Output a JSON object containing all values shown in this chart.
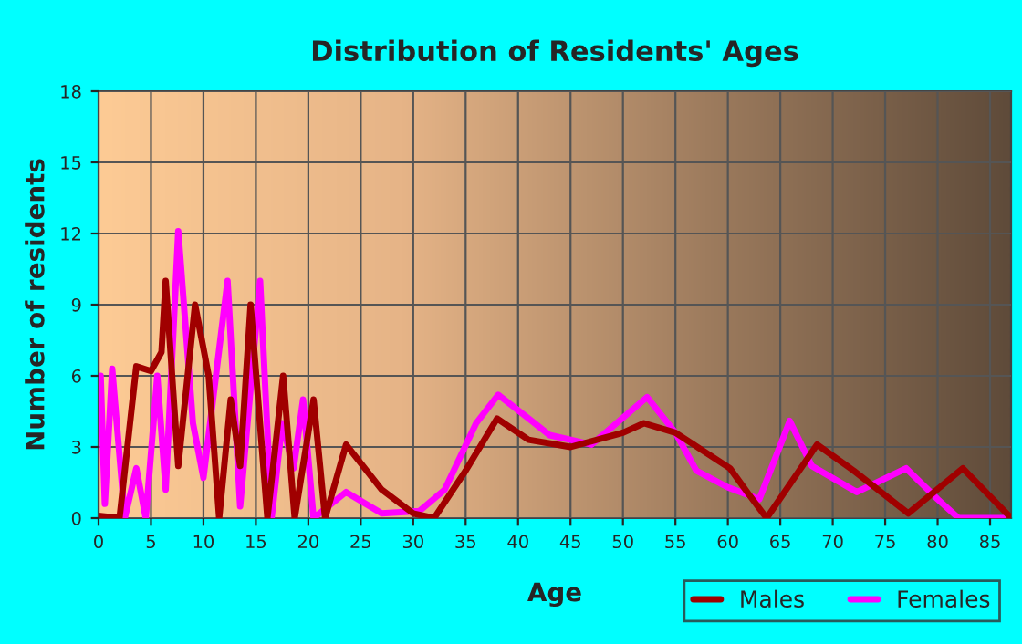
{
  "chart_data": {
    "type": "line",
    "title": "Distribution of Residents' Ages",
    "xlabel": "Age",
    "ylabel": "Number of residents",
    "xlim": [
      0,
      87
    ],
    "xticks": [
      0,
      5,
      10,
      15,
      20,
      25,
      30,
      35,
      40,
      45,
      50,
      55,
      60,
      65,
      70,
      75,
      80,
      85
    ],
    "ylim": [
      0,
      18
    ],
    "yticks": [
      0,
      3,
      6,
      9,
      12,
      15,
      18
    ],
    "grid": true,
    "legend": "bottom right",
    "marker": "none",
    "line_style": "solid",
    "series": [
      {
        "name": "Males",
        "color": "#a00000",
        "x": [
          0,
          2,
          3.6,
          5,
          6,
          6.4,
          7.6,
          9.2,
          10.5,
          11.5,
          12.6,
          13.5,
          14.5,
          16.1,
          17.6,
          18.7,
          20.5,
          21.6,
          23.6,
          27,
          30,
          32,
          35,
          38,
          41,
          45,
          50,
          52,
          55,
          60.2,
          62,
          63.7,
          68.5,
          72,
          77.2,
          82.4,
          86.8
        ],
        "values": [
          0.1,
          0,
          6.4,
          6.2,
          7,
          10,
          2.2,
          9,
          6,
          0,
          5,
          2.2,
          9,
          0,
          6,
          0,
          5,
          0,
          3.1,
          1.2,
          0.2,
          0,
          2,
          4.2,
          3.3,
          3,
          3.6,
          4,
          3.6,
          2.1,
          1,
          0,
          3.1,
          2,
          0.2,
          2.1,
          0.1
        ]
      },
      {
        "name": "Females",
        "color": "#ff00ff",
        "x": [
          0.2,
          0.6,
          1.3,
          2.5,
          3.6,
          4.5,
          5.6,
          6.4,
          7.6,
          9,
          10,
          12.3,
          13.5,
          15.4,
          16.5,
          17.5,
          18.6,
          19.5,
          20.5,
          23.6,
          27,
          30.6,
          33,
          36,
          38.1,
          41,
          43,
          45,
          47,
          52.3,
          55,
          57,
          60,
          63,
          65.9,
          68,
          72.3,
          77,
          80,
          82,
          87
        ],
        "values": [
          6,
          0.6,
          6.3,
          0,
          2.1,
          0,
          6,
          1.2,
          12.1,
          4,
          1.7,
          10,
          0.5,
          10,
          0,
          4,
          2.1,
          5,
          0,
          1.1,
          0.2,
          0.3,
          1.2,
          4,
          5.2,
          4.2,
          3.5,
          3.3,
          3.1,
          5.1,
          3.6,
          2,
          1.3,
          0.8,
          4.1,
          2.2,
          1.1,
          2.1,
          0.8,
          0,
          0
        ]
      }
    ]
  }
}
